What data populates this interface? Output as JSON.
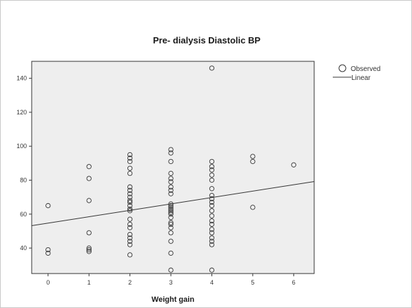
{
  "chart_data": {
    "type": "scatter",
    "title": "Pre- dialysis Diastolic BP",
    "xlabel": "Weight gain",
    "ylabel": "",
    "xlim": [
      -0.4,
      6.5
    ],
    "ylim": [
      25,
      150
    ],
    "xticks": [
      0,
      1,
      2,
      3,
      4,
      5,
      6
    ],
    "yticks": [
      40,
      60,
      80,
      100,
      120,
      140
    ],
    "grid": false,
    "legend": {
      "position": "right",
      "entries": [
        {
          "label": "Observed",
          "marker": "circle"
        },
        {
          "label": "Linear",
          "marker": "line"
        }
      ]
    },
    "colors": {
      "plot_background": "#eeeeee",
      "marker": "#333333",
      "line": "#333333"
    },
    "series": [
      {
        "name": "Observed",
        "points": [
          [
            0,
            65
          ],
          [
            0,
            39
          ],
          [
            0,
            37
          ],
          [
            1,
            88
          ],
          [
            1,
            81
          ],
          [
            1,
            68
          ],
          [
            1,
            49
          ],
          [
            1,
            40
          ],
          [
            1,
            39
          ],
          [
            1,
            38
          ],
          [
            2,
            95
          ],
          [
            2,
            93
          ],
          [
            2,
            91
          ],
          [
            2,
            87
          ],
          [
            2,
            84
          ],
          [
            2,
            76
          ],
          [
            2,
            74
          ],
          [
            2,
            72
          ],
          [
            2,
            70
          ],
          [
            2,
            68
          ],
          [
            2,
            67
          ],
          [
            2,
            65
          ],
          [
            2,
            63
          ],
          [
            2,
            62
          ],
          [
            2,
            57
          ],
          [
            2,
            54
          ],
          [
            2,
            52
          ],
          [
            2,
            48
          ],
          [
            2,
            46
          ],
          [
            2,
            44
          ],
          [
            2,
            42
          ],
          [
            2,
            36
          ],
          [
            3,
            98
          ],
          [
            3,
            96
          ],
          [
            3,
            91
          ],
          [
            3,
            84
          ],
          [
            3,
            81
          ],
          [
            3,
            79
          ],
          [
            3,
            76
          ],
          [
            3,
            74
          ],
          [
            3,
            72
          ],
          [
            3,
            66
          ],
          [
            3,
            65
          ],
          [
            3,
            64
          ],
          [
            3,
            63
          ],
          [
            3,
            62
          ],
          [
            3,
            61
          ],
          [
            3,
            60
          ],
          [
            3,
            58
          ],
          [
            3,
            55
          ],
          [
            3,
            54
          ],
          [
            3,
            52
          ],
          [
            3,
            49
          ],
          [
            3,
            44
          ],
          [
            3,
            37
          ],
          [
            3,
            27
          ],
          [
            4,
            146
          ],
          [
            4,
            91
          ],
          [
            4,
            88
          ],
          [
            4,
            86
          ],
          [
            4,
            83
          ],
          [
            4,
            80
          ],
          [
            4,
            75
          ],
          [
            4,
            71
          ],
          [
            4,
            69
          ],
          [
            4,
            67
          ],
          [
            4,
            65
          ],
          [
            4,
            62
          ],
          [
            4,
            59
          ],
          [
            4,
            56
          ],
          [
            4,
            54
          ],
          [
            4,
            51
          ],
          [
            4,
            49
          ],
          [
            4,
            46
          ],
          [
            4,
            44
          ],
          [
            4,
            42
          ],
          [
            4,
            27
          ],
          [
            5,
            94
          ],
          [
            5,
            91
          ],
          [
            5,
            64
          ],
          [
            6,
            89
          ]
        ]
      }
    ],
    "fit_line": {
      "name": "Linear",
      "x": [
        -0.4,
        6.5
      ],
      "y": [
        53.2,
        79.2
      ]
    }
  }
}
